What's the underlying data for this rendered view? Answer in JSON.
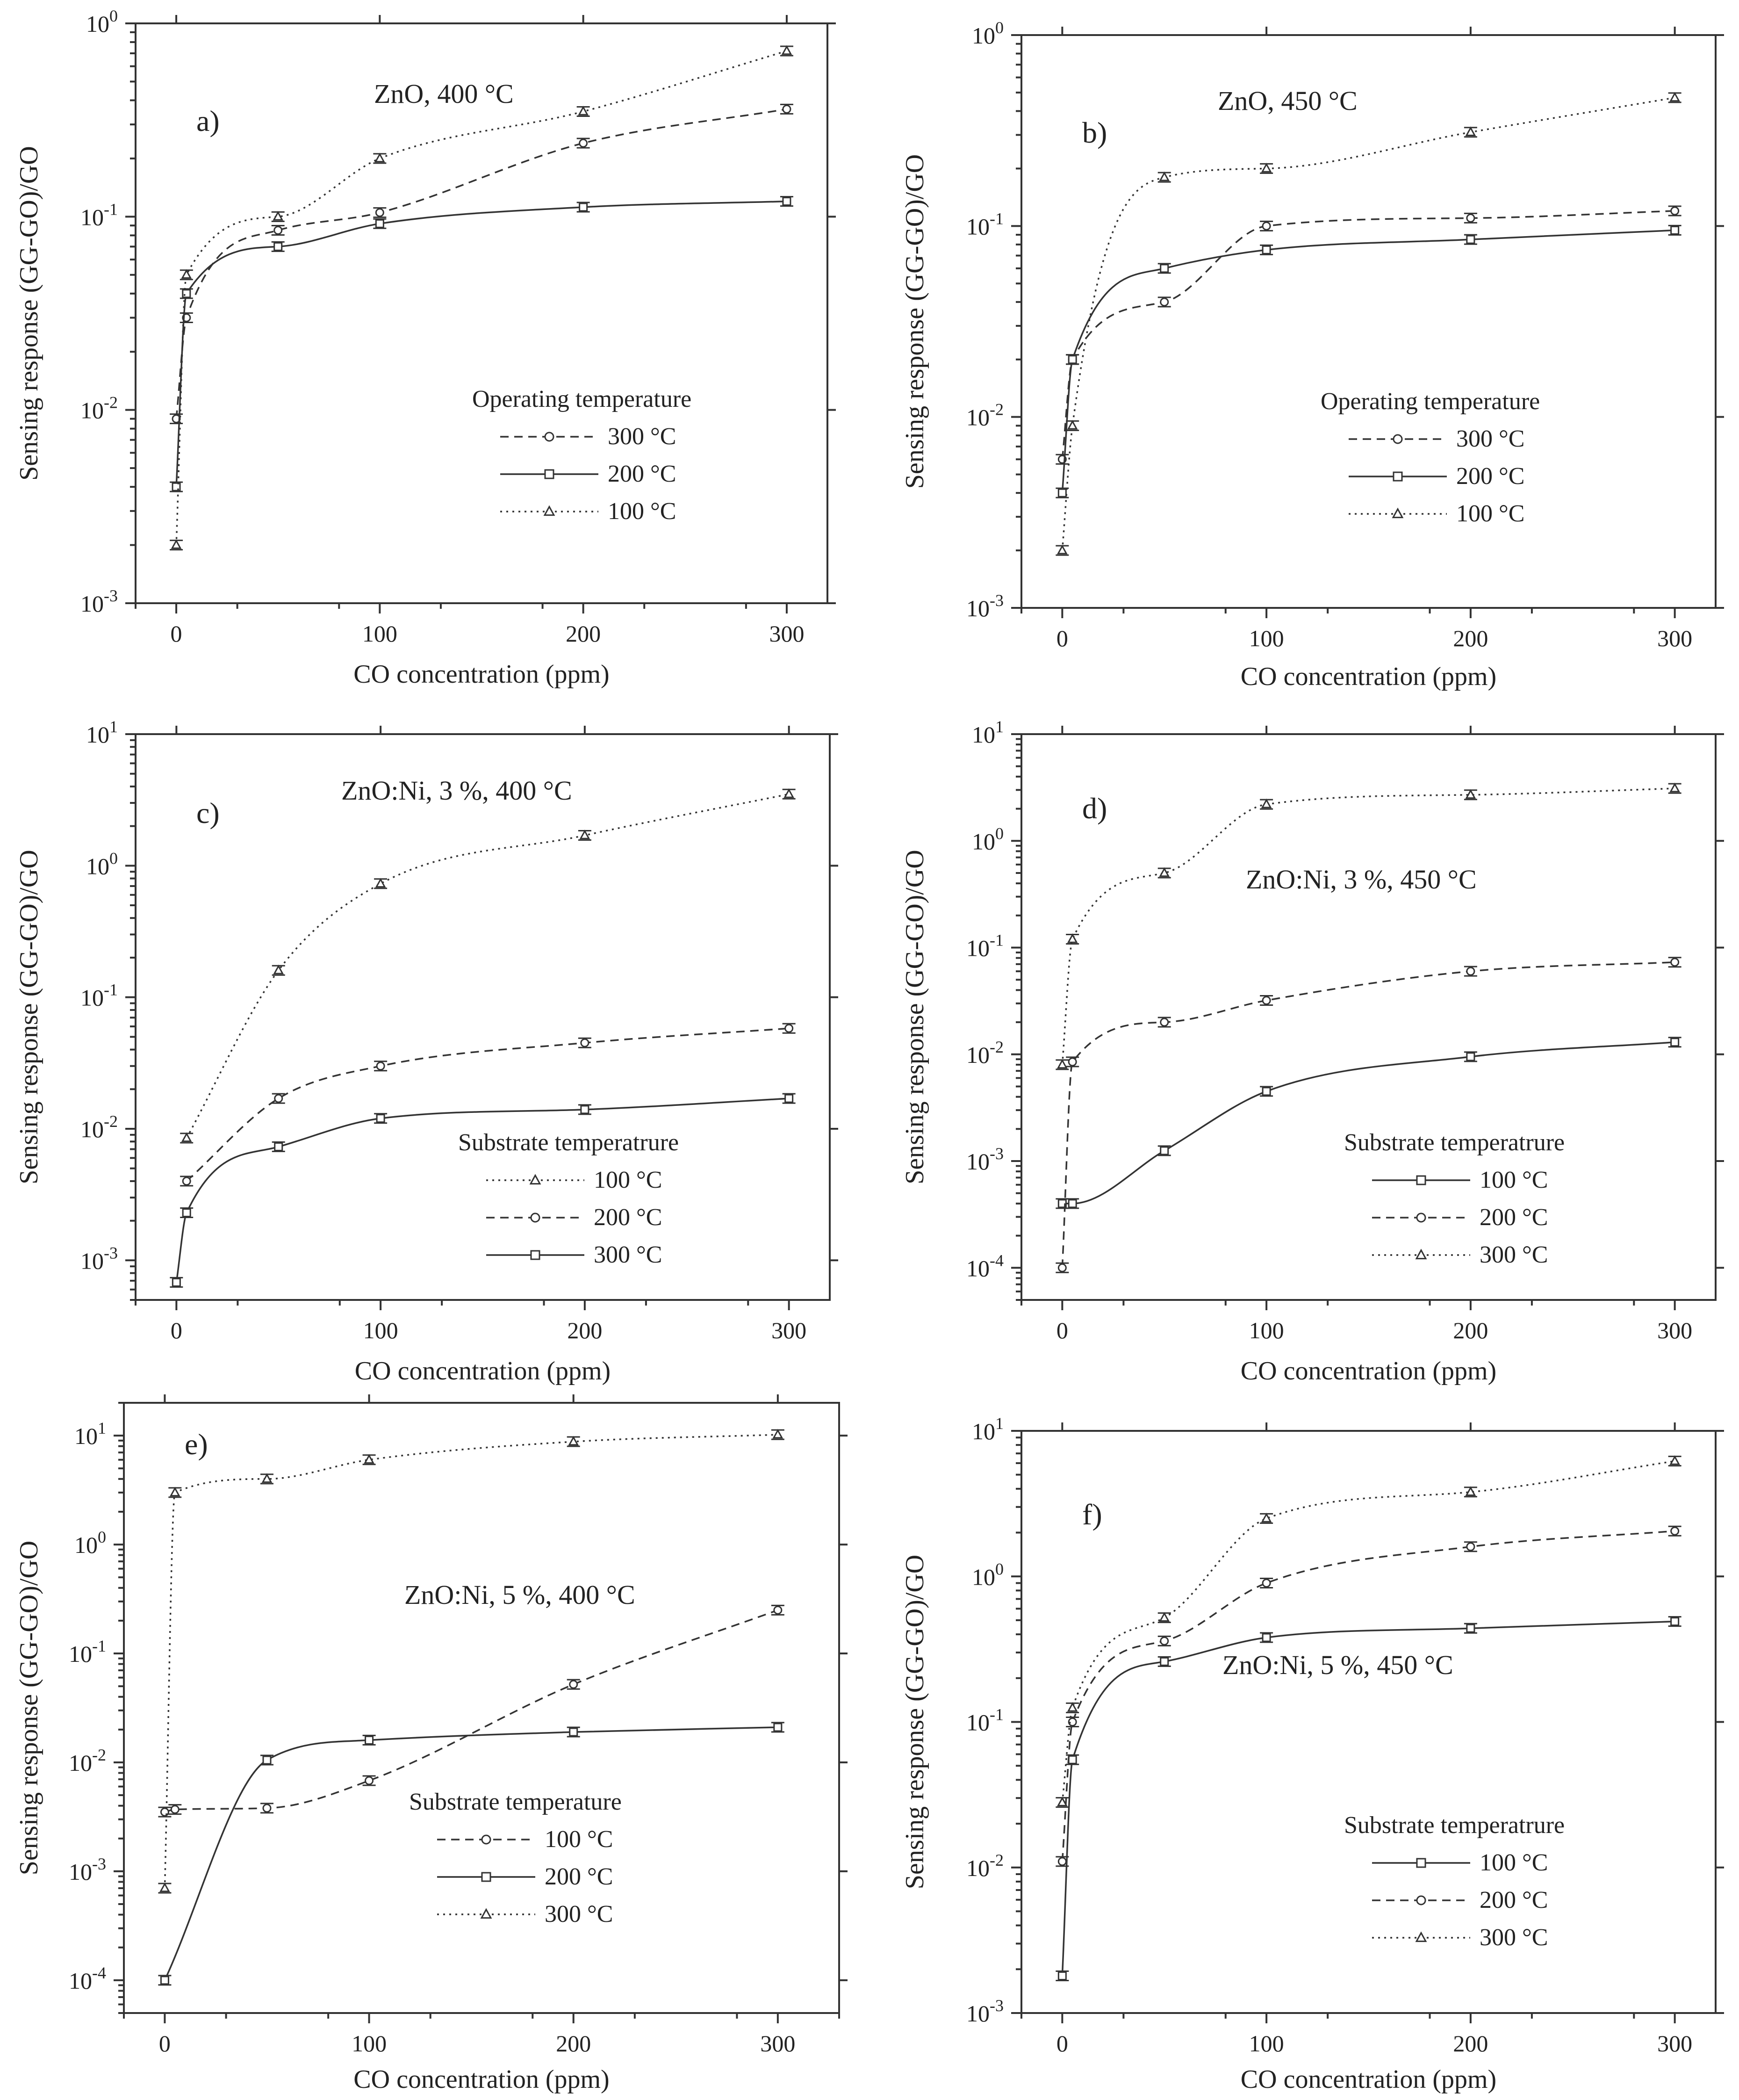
{
  "chart_data": [
    {
      "type": "line",
      "panel_label": "a)",
      "title": "ZnO, 400 °C",
      "xlabel": "CO concentration (ppm)",
      "ylabel": "Sensing response (GG-GO)/GO",
      "xlim": [
        -20,
        320
      ],
      "xticks": [
        0,
        100,
        200,
        300
      ],
      "ylim": [
        0.001,
        1
      ],
      "yscale": "log",
      "yticks": [
        0.001,
        0.01,
        0.1,
        1
      ],
      "ytick_labels": [
        {
          "base": "10",
          "exp": "-3"
        },
        {
          "base": "10",
          "exp": "-2"
        },
        {
          "base": "10",
          "exp": "-1"
        },
        {
          "base": "10",
          "exp": "0"
        }
      ],
      "legend": {
        "title": "Operating temperature",
        "position": "center-right"
      },
      "series": [
        {
          "name": "300 °C",
          "style": "dashed",
          "marker": "circle",
          "x": [
            0,
            5,
            50,
            100,
            200,
            300
          ],
          "y": [
            0.009,
            0.03,
            0.085,
            0.105,
            0.24,
            0.36
          ]
        },
        {
          "name": "200 °C",
          "style": "solid",
          "marker": "square",
          "x": [
            0,
            5,
            50,
            100,
            200,
            300
          ],
          "y": [
            0.004,
            0.04,
            0.07,
            0.092,
            0.112,
            0.12
          ]
        },
        {
          "name": "100 °C",
          "style": "dotted",
          "marker": "triangle",
          "x": [
            0,
            5,
            50,
            100,
            200,
            300
          ],
          "y": [
            0.002,
            0.05,
            0.1,
            0.2,
            0.35,
            0.72
          ]
        }
      ]
    },
    {
      "type": "line",
      "panel_label": "b)",
      "title": "ZnO, 450 °C",
      "xlabel": "CO concentration (ppm)",
      "ylabel": "Sensing response (GG-GO)/GO",
      "xlim": [
        -20,
        320
      ],
      "xticks": [
        0,
        100,
        200,
        300
      ],
      "ylim": [
        0.001,
        1
      ],
      "yscale": "log",
      "yticks": [
        0.001,
        0.01,
        0.1,
        1
      ],
      "ytick_labels": [
        {
          "base": "10",
          "exp": "-3"
        },
        {
          "base": "10",
          "exp": "-2"
        },
        {
          "base": "10",
          "exp": "-1"
        },
        {
          "base": "10",
          "exp": "0"
        }
      ],
      "legend": {
        "title": "Operating temperature",
        "position": "center-right"
      },
      "series": [
        {
          "name": "300 °C",
          "style": "dashed",
          "marker": "circle",
          "x": [
            0,
            5,
            50,
            100,
            200,
            300
          ],
          "y": [
            0.006,
            0.02,
            0.04,
            0.1,
            0.11,
            0.12
          ]
        },
        {
          "name": "200 °C",
          "style": "solid",
          "marker": "square",
          "x": [
            0,
            5,
            50,
            100,
            200,
            300
          ],
          "y": [
            0.004,
            0.02,
            0.06,
            0.075,
            0.085,
            0.095
          ]
        },
        {
          "name": "100 °C",
          "style": "dotted",
          "marker": "triangle",
          "x": [
            0,
            5,
            50,
            100,
            200,
            300
          ],
          "y": [
            0.002,
            0.009,
            0.18,
            0.2,
            0.31,
            0.47
          ]
        }
      ]
    },
    {
      "type": "line",
      "panel_label": "c)",
      "title": "ZnO:Ni, 3 %, 400 °C",
      "xlabel": "CO concentration (ppm)",
      "ylabel": "Sensing response (GG-GO)/GO",
      "xlim": [
        -20,
        320
      ],
      "xticks": [
        0,
        100,
        200,
        300
      ],
      "ylim": [
        0.0005,
        10
      ],
      "yscale": "log",
      "yticks": [
        0.001,
        0.01,
        0.1,
        1,
        10
      ],
      "ytick_labels": [
        {
          "base": "10",
          "exp": "-3"
        },
        {
          "base": "10",
          "exp": "-2"
        },
        {
          "base": "10",
          "exp": "-1"
        },
        {
          "base": "10",
          "exp": "0"
        },
        {
          "base": "10",
          "exp": "1"
        }
      ],
      "legend": {
        "title": "Substrate temperatrure",
        "position": "bottom-right"
      },
      "series": [
        {
          "name": "100 °C",
          "style": "dotted",
          "marker": "triangle",
          "x": [
            5,
            50,
            100,
            200,
            300
          ],
          "y": [
            0.0085,
            0.16,
            0.73,
            1.7,
            3.5
          ]
        },
        {
          "name": "200 °C",
          "style": "dashed",
          "marker": "circle",
          "x": [
            5,
            50,
            100,
            200,
            300
          ],
          "y": [
            0.004,
            0.017,
            0.03,
            0.045,
            0.058
          ]
        },
        {
          "name": "300 °C",
          "style": "solid",
          "marker": "square",
          "x": [
            0,
            5,
            50,
            100,
            200,
            300
          ],
          "y": [
            0.00068,
            0.0023,
            0.0073,
            0.012,
            0.014,
            0.017
          ]
        }
      ]
    },
    {
      "type": "line",
      "panel_label": "d)",
      "title": "ZnO:Ni, 3 %, 450 °C",
      "xlabel": "CO concentration (ppm)",
      "ylabel": "Sensing response (GG-GO)/GO",
      "xlim": [
        -20,
        320
      ],
      "xticks": [
        0,
        100,
        200,
        300
      ],
      "ylim": [
        5e-05,
        10
      ],
      "yscale": "log",
      "yticks": [
        0.0001,
        0.001,
        0.01,
        0.1,
        1,
        10
      ],
      "ytick_labels": [
        {
          "base": "10",
          "exp": "-4"
        },
        {
          "base": "10",
          "exp": "-3"
        },
        {
          "base": "10",
          "exp": "-2"
        },
        {
          "base": "10",
          "exp": "-1"
        },
        {
          "base": "10",
          "exp": "0"
        },
        {
          "base": "10",
          "exp": "1"
        }
      ],
      "legend": {
        "title": "Substrate temperatrure",
        "position": "bottom-right"
      },
      "series": [
        {
          "name": "100 °C",
          "style": "solid",
          "marker": "square",
          "x": [
            0,
            5,
            50,
            100,
            200,
            300
          ],
          "y": [
            0.0004,
            0.0004,
            0.00125,
            0.0045,
            0.0095,
            0.013
          ]
        },
        {
          "name": "200 °C",
          "style": "dashed",
          "marker": "circle",
          "x": [
            0,
            5,
            50,
            100,
            200,
            300
          ],
          "y": [
            0.0001,
            0.0085,
            0.02,
            0.032,
            0.06,
            0.073
          ]
        },
        {
          "name": "300 °C",
          "style": "dotted",
          "marker": "triangle",
          "x": [
            0,
            5,
            50,
            100,
            200,
            300
          ],
          "y": [
            0.008,
            0.12,
            0.5,
            2.2,
            2.7,
            3.1
          ]
        }
      ]
    },
    {
      "type": "line",
      "panel_label": "e)",
      "title": "ZnO:Ni, 5 %, 400 °C",
      "xlabel": "CO concentration (ppm)",
      "ylabel": "Sensing response (GG-GO)/GO",
      "xlim": [
        -20,
        330
      ],
      "xticks": [
        0,
        100,
        200,
        300
      ],
      "ylim": [
        5e-05,
        20
      ],
      "yscale": "log",
      "yticks": [
        0.0001,
        0.001,
        0.01,
        0.1,
        1,
        10
      ],
      "ytick_labels": [
        {
          "base": "10",
          "exp": "-4"
        },
        {
          "base": "10",
          "exp": "-3"
        },
        {
          "base": "10",
          "exp": "-2"
        },
        {
          "base": "10",
          "exp": "-1"
        },
        {
          "base": "10",
          "exp": "0"
        },
        {
          "base": "10",
          "exp": "1"
        }
      ],
      "legend": {
        "title": "Substrate temperature",
        "position": "bottom-right"
      },
      "series": [
        {
          "name": "100 °C",
          "style": "dashed",
          "marker": "circle",
          "x": [
            0,
            5,
            50,
            100,
            200,
            300
          ],
          "y": [
            0.0035,
            0.0037,
            0.0038,
            0.0068,
            0.052,
            0.25
          ]
        },
        {
          "name": "200 °C",
          "style": "solid",
          "marker": "square",
          "x": [
            0,
            50,
            100,
            200,
            300
          ],
          "y": [
            0.0001,
            0.0105,
            0.016,
            0.019,
            0.021
          ]
        },
        {
          "name": "300 °C",
          "style": "dotted",
          "marker": "triangle",
          "x": [
            0,
            5,
            50,
            100,
            200,
            300
          ],
          "y": [
            0.0007,
            3.0,
            4.0,
            6.0,
            8.8,
            10.2
          ]
        }
      ]
    },
    {
      "type": "line",
      "panel_label": "f)",
      "title": "ZnO:Ni, 5 %, 450 °C",
      "xlabel": "CO concentration (ppm)",
      "ylabel": "Sensing response (GG-GO)/GO",
      "xlim": [
        -20,
        320
      ],
      "xticks": [
        0,
        100,
        200,
        300
      ],
      "ylim": [
        0.001,
        10
      ],
      "yscale": "log",
      "yticks": [
        0.001,
        0.01,
        0.1,
        1,
        10
      ],
      "ytick_labels": [
        {
          "base": "10",
          "exp": "-3"
        },
        {
          "base": "10",
          "exp": "-2"
        },
        {
          "base": "10",
          "exp": "-1"
        },
        {
          "base": "10",
          "exp": "0"
        },
        {
          "base": "10",
          "exp": "1"
        }
      ],
      "legend": {
        "title": "Substrate temperatrure",
        "position": "bottom-right"
      },
      "series": [
        {
          "name": "100 °C",
          "style": "solid",
          "marker": "square",
          "x": [
            0,
            5,
            50,
            100,
            200,
            300
          ],
          "y": [
            0.0018,
            0.055,
            0.26,
            0.38,
            0.44,
            0.49
          ]
        },
        {
          "name": "200 °C",
          "style": "dashed",
          "marker": "circle",
          "x": [
            0,
            5,
            50,
            100,
            200,
            300
          ],
          "y": [
            0.011,
            0.1,
            0.36,
            0.9,
            1.6,
            2.05
          ]
        },
        {
          "name": "300 °C",
          "style": "dotted",
          "marker": "triangle",
          "x": [
            0,
            5,
            50,
            100,
            200,
            300
          ],
          "y": [
            0.028,
            0.125,
            0.52,
            2.5,
            3.8,
            6.2
          ]
        }
      ]
    }
  ]
}
